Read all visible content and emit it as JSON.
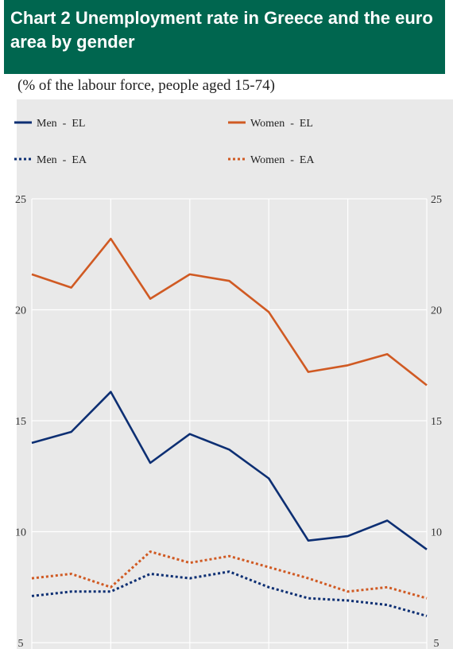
{
  "title": "Chart 2 Unemployment rate in Greece and the euro area by gender",
  "subtitle": "(% of the labour force, people aged 15-74)",
  "colors": {
    "header_bg": "#00664f",
    "men": "#0d2f73",
    "women": "#d05a23",
    "panel_bg": "#e9e9e9"
  },
  "chart_data": {
    "type": "line",
    "ylim": [
      5,
      25
    ],
    "yticks": [
      5,
      10,
      15,
      20,
      25
    ],
    "grid": true,
    "legend_position": "top",
    "x": [
      1,
      2,
      3,
      4,
      5,
      6,
      7,
      8,
      9,
      10,
      11
    ],
    "series": [
      {
        "name": "Men  -  EL",
        "color": "#0d2f73",
        "style": "solid",
        "values": [
          14.0,
          14.5,
          16.3,
          13.1,
          14.4,
          13.7,
          12.4,
          9.6,
          9.8,
          10.5,
          9.2
        ]
      },
      {
        "name": "Women  -  EL",
        "color": "#d05a23",
        "style": "solid",
        "values": [
          21.6,
          21.0,
          23.2,
          20.5,
          21.6,
          21.3,
          19.9,
          17.2,
          17.5,
          18.0,
          16.6
        ]
      },
      {
        "name": "Men  -  EA",
        "color": "#0d2f73",
        "style": "dotted",
        "values": [
          7.1,
          7.3,
          7.3,
          8.1,
          7.9,
          8.2,
          7.5,
          7.0,
          6.9,
          6.7,
          6.2
        ]
      },
      {
        "name": "Women  -  EA",
        "color": "#d05a23",
        "style": "dotted",
        "values": [
          7.9,
          8.1,
          7.5,
          9.1,
          8.6,
          8.9,
          8.4,
          7.9,
          7.3,
          7.5,
          7.0
        ]
      }
    ]
  }
}
